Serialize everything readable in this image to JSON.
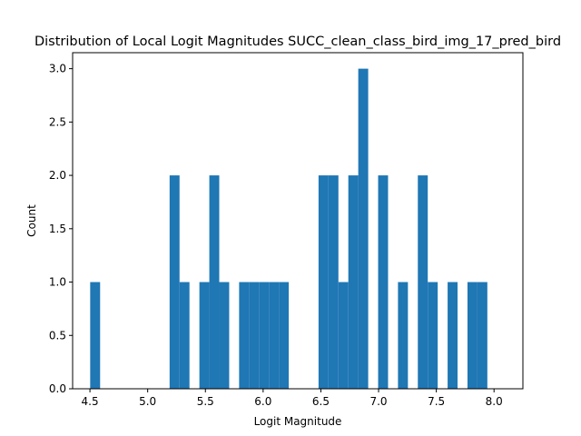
{
  "chart_data": {
    "type": "bar",
    "title": "Distribution of Local Logit Magnitudes SUCC_clean_class_bird_img_17_pred_bird",
    "xlabel": "Logit Magnitude",
    "ylabel": "Count",
    "xlim": [
      4.35,
      8.25
    ],
    "ylim": [
      0,
      3.15
    ],
    "xticks": [
      "4.5",
      "5.0",
      "5.5",
      "6.0",
      "6.5",
      "7.0",
      "7.5",
      "8.0"
    ],
    "yticks": [
      "0.0",
      "0.5",
      "1.0",
      "1.5",
      "2.0",
      "2.5",
      "3.0"
    ],
    "grid": false,
    "bar_color": "#1f77b4",
    "bin_edges": [
      4.502,
      4.588,
      4.674,
      4.76,
      4.846,
      4.932,
      5.018,
      5.104,
      5.19,
      5.276,
      5.362,
      5.448,
      5.534,
      5.62,
      5.706,
      5.792,
      5.878,
      5.964,
      6.05,
      6.136,
      6.222,
      6.308,
      6.394,
      6.48,
      6.566,
      6.652,
      6.738,
      6.824,
      6.91,
      6.996,
      7.082,
      7.168,
      7.254,
      7.34,
      7.426,
      7.512,
      7.598,
      7.684,
      7.77,
      7.856,
      7.942,
      8.028,
      8.114
    ],
    "counts": [
      1,
      0,
      0,
      0,
      0,
      0,
      0,
      0,
      2,
      1,
      0,
      1,
      2,
      1,
      0,
      1,
      1,
      1,
      1,
      1,
      0,
      0,
      0,
      2,
      2,
      1,
      2,
      3,
      0,
      2,
      0,
      1,
      0,
      2,
      1,
      0,
      1,
      0,
      1,
      1,
      0,
      0
    ]
  }
}
